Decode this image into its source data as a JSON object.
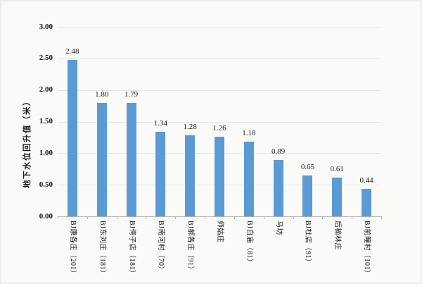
{
  "chart_data": {
    "type": "bar",
    "title": "",
    "xlabel": "",
    "ylabel": "地下水位回升值（米）",
    "ylim": [
      0,
      3.0
    ],
    "ytick_step": 0.5,
    "y_tick_labels": [
      "3.00",
      "2.50",
      "2.00",
      "1.50",
      "1.00",
      "0.50",
      "0.00"
    ],
    "grid": true,
    "legend": false,
    "bar_color": "#5B9BD5",
    "categories": [
      "BJ康各庄（201）",
      "BJ东刘庄（181）",
      "BJ侉子店（181）",
      "BJ南河村（70）",
      "BJ郝各庄（91）",
      "师姑庄",
      "BJ白庙（81）",
      "马坊",
      "BJ杜店（91）",
      "后榆林庄",
      "BJ前疃村（101）"
    ],
    "values": [
      2.48,
      1.8,
      1.79,
      1.34,
      1.28,
      1.26,
      1.18,
      0.89,
      0.65,
      0.61,
      0.44
    ],
    "value_labels": [
      "2.48",
      "1.80",
      "1.79",
      "1.34",
      "1.28",
      "1.26",
      "1.18",
      "0.89",
      "0.65",
      "0.61",
      "0.44"
    ]
  }
}
